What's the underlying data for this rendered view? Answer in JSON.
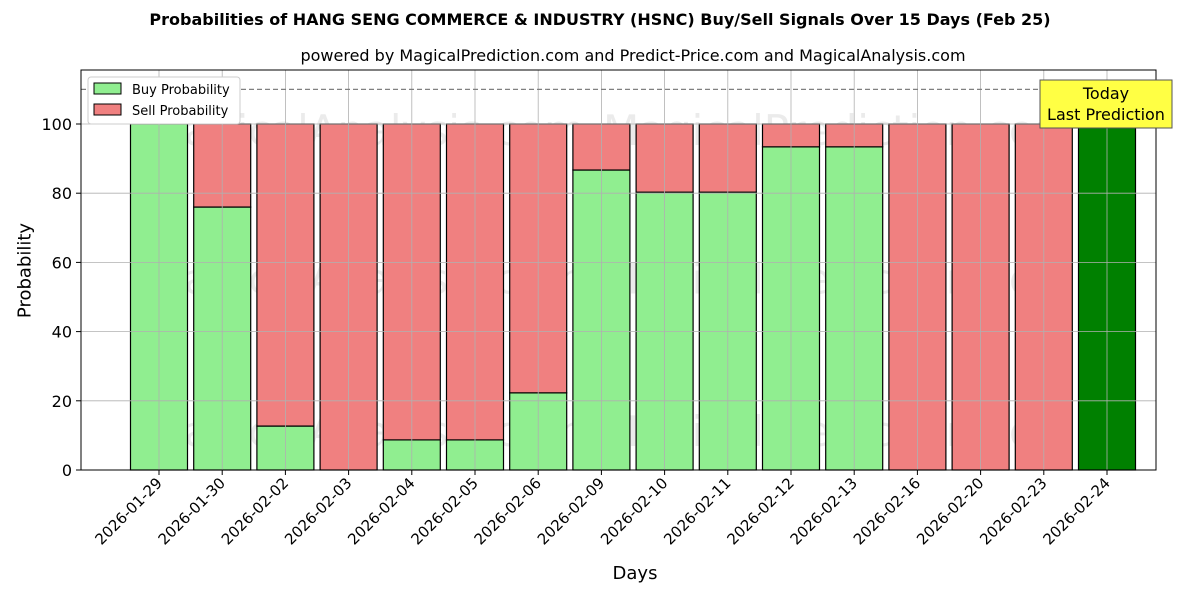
{
  "title": "Probabilities of HANG SENG COMMERCE & INDUSTRY (HSNC) Buy/Sell Signals Over 15 Days (Feb 25)",
  "subtitle": "powered by MagicalPrediction.com and Predict-Price.com and MagicalAnalysis.com",
  "legend": {
    "buy": "Buy Probability",
    "sell": "Sell Probability"
  },
  "annotation": {
    "line1": "Today",
    "line2": "Last Prediction"
  },
  "watermarks": [
    "MagicalAnalysis.com",
    "MagicalPrediction.com"
  ],
  "colors": {
    "buy": "#90ee90",
    "sell": "#f08080",
    "today": "#008000",
    "annotation_bg": "#ffff44"
  },
  "chart_data": {
    "type": "bar",
    "stacked": true,
    "title": "Probabilities of HANG SENG COMMERCE & INDUSTRY (HSNC) Buy/Sell Signals Over 15 Days (Feb 25)",
    "subtitle": "powered by MagicalPrediction.com and Predict-Price.com and MagicalAnalysis.com",
    "xlabel": "Days",
    "ylabel": "Probability",
    "ylim": [
      0,
      115
    ],
    "yticks": [
      0,
      20,
      40,
      60,
      80,
      100
    ],
    "grid": true,
    "legend_position": "upper left",
    "reference_line": {
      "y": 110,
      "style": "dashed"
    },
    "categories": [
      "2026-01-29",
      "2026-01-30",
      "2026-02-02",
      "2026-02-03",
      "2026-02-04",
      "2026-02-05",
      "2026-02-06",
      "2026-02-09",
      "2026-02-10",
      "2026-02-11",
      "2026-02-12",
      "2026-02-13",
      "2026-02-16",
      "2026-02-20",
      "2026-02-23",
      "2026-02-24"
    ],
    "series": [
      {
        "name": "Buy Probability",
        "values": [
          100,
          76.0,
          12.7,
          0,
          8.7,
          8.7,
          22.3,
          86.7,
          80.3,
          80.3,
          93.4,
          93.4,
          0,
          0,
          0,
          100
        ]
      },
      {
        "name": "Sell Probability",
        "values": [
          0,
          24.0,
          87.3,
          100,
          91.3,
          91.3,
          77.7,
          13.3,
          19.7,
          19.7,
          6.6,
          6.6,
          100,
          100,
          100,
          0
        ]
      }
    ],
    "annotations": [
      {
        "text": "Today\nLast Prediction",
        "x": "2026-02-24"
      }
    ]
  }
}
